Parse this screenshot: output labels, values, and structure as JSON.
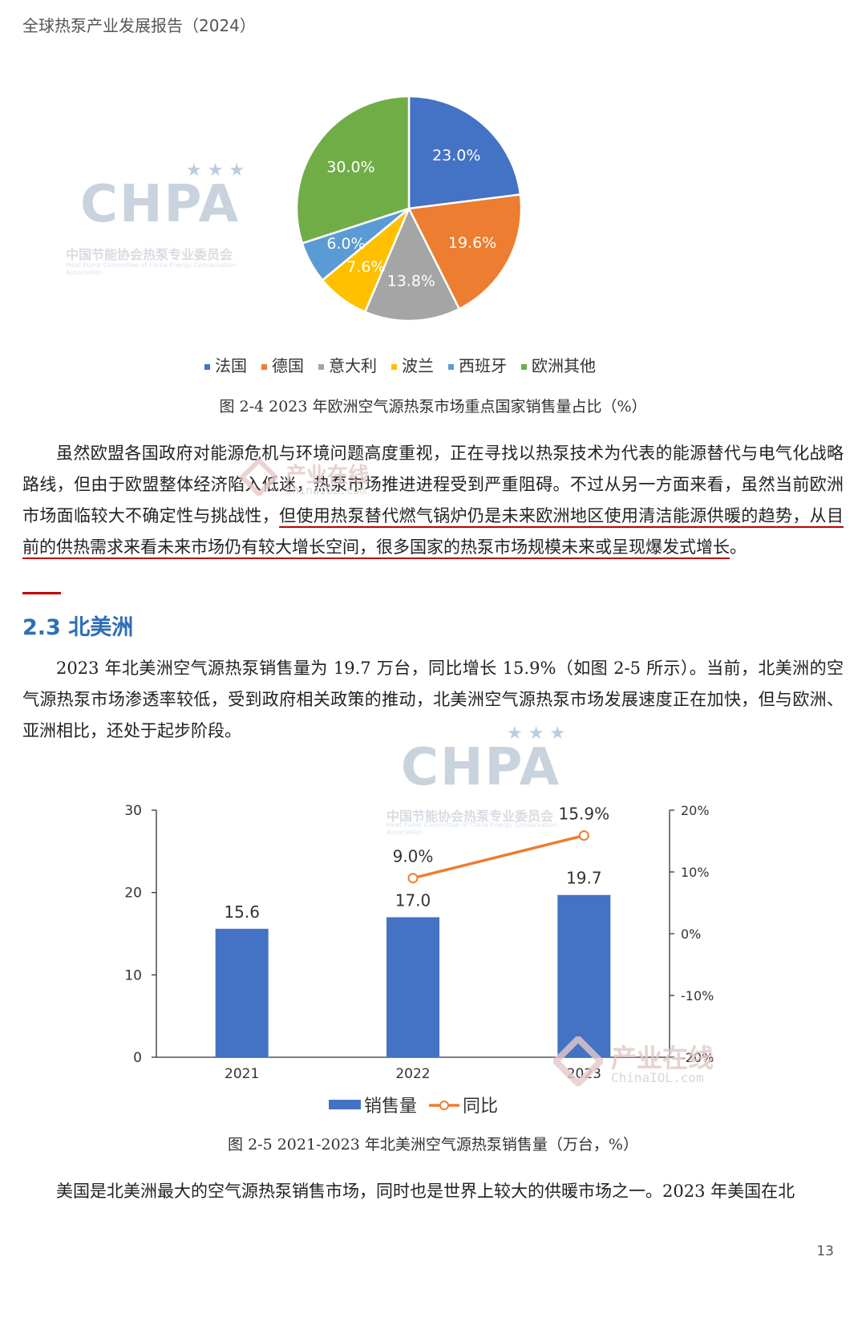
{
  "header": {
    "title": "全球热泵产业发展报告（2024）"
  },
  "watermarks": {
    "chpa": "CHPA",
    "chpa_cn": "中国节能协会热泵专业委员会",
    "chpa_en": "Heat Pump Committee of China Energy Conservation Association",
    "iol_cn": "产业在线",
    "iol_en": "ChinaIOL.com"
  },
  "pie_figure": {
    "caption": "图 2-4  2023 年欧洲空气源热泵市场重点国家销售量占比（%）"
  },
  "paragraph1": {
    "plain": "虽然欧盟各国政府对能源危机与环境问题高度重视，正在寻找以热泵技术为代表的能源替代与电气化战略路线，但由于欧盟整体经济陷入低迷，热泵市场推进进程受到严重阻碍。不过从另一方面来看，虽然当前欧洲市场面临较大不确定性与挑战性，",
    "underlined": "但使用热泵替代燃气锅炉仍是未来欧洲地区使用清洁能源供暖的趋势，从目前的供热需求来看未来市场仍有较大增长空间，很多国家的热泵市场规模未来或呈现爆发式增长",
    "end": "。"
  },
  "section": {
    "title": "2.3 北美洲"
  },
  "paragraph2": "2023 年北美洲空气源热泵销售量为 19.7 万台，同比增长 15.9%（如图 2-5 所示）。当前，北美洲的空气源热泵市场渗透率较低，受到政府相关政策的推动，北美洲空气源热泵市场发展速度正在加快，但与欧洲、亚洲相比，还处于起步阶段。",
  "bar_figure": {
    "caption": "图 2-5  2021-2023 年北美洲空气源热泵销售量（万台，%）"
  },
  "paragraph3": "美国是北美洲最大的空气源热泵销售市场，同时也是世界上较大的供暖市场之一。2023 年美国在北",
  "page_number": "13",
  "chart_data": [
    {
      "type": "pie",
      "title": "",
      "slices": [
        {
          "label": "法国",
          "value": 23.0,
          "display": "23.0%",
          "color": "#4472c4"
        },
        {
          "label": "德国",
          "value": 19.6,
          "display": "19.6%",
          "color": "#ed7d31"
        },
        {
          "label": "意大利",
          "value": 13.8,
          "display": "13.8%",
          "color": "#a5a5a5"
        },
        {
          "label": "波兰",
          "value": 7.6,
          "display": "7.6%",
          "color": "#ffc000"
        },
        {
          "label": "西班牙",
          "value": 6.0,
          "display": "6.0%",
          "color": "#5b9bd5"
        },
        {
          "label": "欧洲其他",
          "value": 30.0,
          "display": "30.0%",
          "color": "#70ad47"
        }
      ],
      "legend_position": "bottom"
    },
    {
      "type": "bar",
      "categories": [
        "2021",
        "2022",
        "2023"
      ],
      "series": [
        {
          "name": "销售量",
          "kind": "bar",
          "axis": "left",
          "color": "#4472c4",
          "values": [
            15.6,
            17.0,
            19.7
          ],
          "labels": [
            "15.6",
            "17.0",
            "19.7"
          ]
        },
        {
          "name": "同比",
          "kind": "line",
          "axis": "right",
          "color": "#ed7d31",
          "values": [
            null,
            9.0,
            15.9
          ],
          "labels": [
            "",
            "9.0%",
            "15.9%"
          ]
        }
      ],
      "ylim_left": [
        0,
        30
      ],
      "yticks_left": [
        "0",
        "10",
        "20",
        "30"
      ],
      "ylim_right": [
        -20,
        20
      ],
      "yticks_right": [
        "-20%",
        "-10%",
        "0%",
        "10%",
        "20%"
      ],
      "legend_position": "bottom",
      "grid": false
    }
  ]
}
